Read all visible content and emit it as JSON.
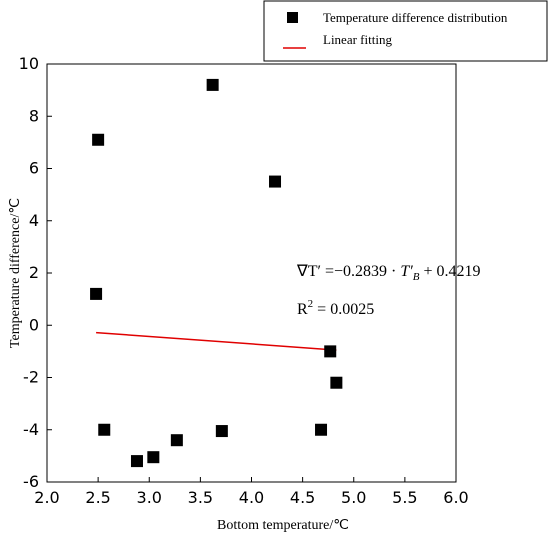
{
  "chart_data": {
    "type": "scatter",
    "xlabel": "Bottom temperature/℃",
    "ylabel": "Temperature difference/℃",
    "xlim": [
      2.0,
      6.0
    ],
    "ylim": [
      -6,
      10
    ],
    "x_ticks": [
      "2.0",
      "2.5",
      "3.0",
      "3.5",
      "4.0",
      "4.5",
      "5.0",
      "5.5",
      "6.0"
    ],
    "y_ticks": [
      "-6",
      "-4",
      "-2",
      "0",
      "2",
      "4",
      "6",
      "8",
      "10"
    ],
    "series": [
      {
        "name": "Temperature difference distribution",
        "marker": "square",
        "color": "#000000",
        "points": [
          {
            "x": 2.5,
            "y": 7.1
          },
          {
            "x": 2.48,
            "y": 1.2
          },
          {
            "x": 2.56,
            "y": -4.0
          },
          {
            "x": 2.88,
            "y": -5.2
          },
          {
            "x": 3.04,
            "y": -5.05
          },
          {
            "x": 3.27,
            "y": -4.4
          },
          {
            "x": 3.62,
            "y": 9.2
          },
          {
            "x": 3.71,
            "y": -4.05
          },
          {
            "x": 4.23,
            "y": 5.5
          },
          {
            "x": 4.68,
            "y": -4.0
          },
          {
            "x": 4.77,
            "y": -1.0
          },
          {
            "x": 4.83,
            "y": -2.2
          }
        ]
      },
      {
        "name": "Linear fitting",
        "type": "line",
        "color": "#e00000",
        "points": [
          {
            "x": 2.48,
            "y": -0.28
          },
          {
            "x": 4.83,
            "y": -0.95
          }
        ]
      }
    ],
    "legend": {
      "position": "top-right",
      "entries": [
        "Temperature difference distribution",
        "Linear fitting"
      ]
    },
    "annotation": {
      "equation": "∇T′ =−0.2839 · T′B  + 0.4219",
      "equation_parts": {
        "lhs": "∇T′ =−0.2839 · ",
        "var": "T′",
        "sub": "B",
        "rhs": " + 0.4219"
      },
      "r2_label": "R",
      "r2_sup": "2",
      "r2_value": " = 0.0025"
    }
  }
}
